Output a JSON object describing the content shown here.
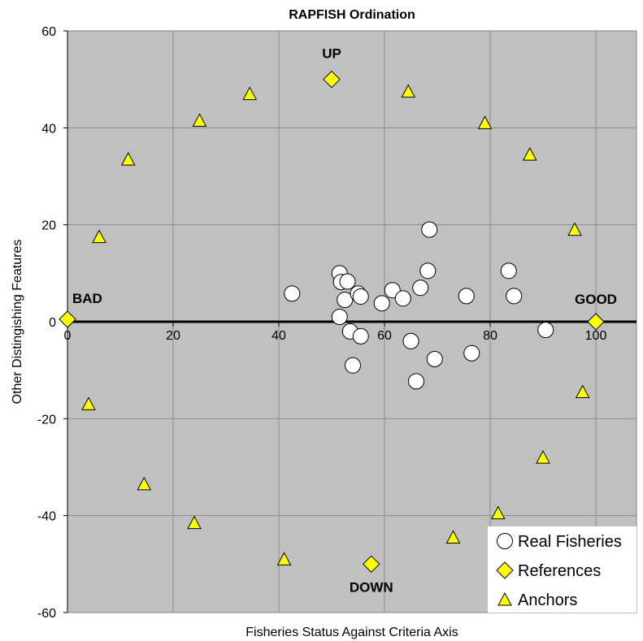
{
  "chart_data": {
    "type": "scatter",
    "title": "RAPFISH Ordination",
    "xlabel": "Fisheries Status Against Criteria Axis",
    "ylabel": "Other Distingishing Features",
    "xlim": [
      -1,
      109
    ],
    "ylim": [
      -60,
      60
    ],
    "x_ticks": [
      0,
      20,
      40,
      60,
      80,
      100
    ],
    "y_ticks": [
      -60,
      -40,
      -20,
      0,
      20,
      40,
      60
    ],
    "grid": true,
    "background": "#c0c0c0",
    "legend_position": "bottom-right",
    "series": [
      {
        "name": "Real Fisheries",
        "marker": "circle",
        "color": "#ffffff",
        "points": [
          [
            42.5,
            5.8
          ],
          [
            51.5,
            10
          ],
          [
            51.8,
            8.2
          ],
          [
            53,
            8.3
          ],
          [
            52.5,
            4.5
          ],
          [
            55,
            5.8
          ],
          [
            55.5,
            5.2
          ],
          [
            51.5,
            1
          ],
          [
            53.5,
            -2
          ],
          [
            55.5,
            -3
          ],
          [
            54,
            -9
          ],
          [
            59.5,
            3.8
          ],
          [
            61.5,
            6.5
          ],
          [
            63.5,
            4.8
          ],
          [
            65,
            -4
          ],
          [
            66,
            -12.3
          ],
          [
            66.8,
            7
          ],
          [
            68.2,
            10.5
          ],
          [
            68.5,
            19
          ],
          [
            69.5,
            -7.7
          ],
          [
            75.5,
            5.3
          ],
          [
            76.5,
            -6.5
          ],
          [
            83.5,
            10.5
          ],
          [
            84.5,
            5.3
          ],
          [
            90.5,
            -1.7
          ]
        ]
      },
      {
        "name": "References",
        "marker": "diamond",
        "color": "#ffff00",
        "points": [
          [
            0,
            0.5
          ],
          [
            50,
            50
          ],
          [
            100,
            0
          ],
          [
            57.5,
            -50
          ]
        ]
      },
      {
        "name": "Anchors",
        "marker": "triangle",
        "color": "#ffff00",
        "points": [
          [
            34.5,
            47
          ],
          [
            25,
            41.5
          ],
          [
            11.5,
            33.5
          ],
          [
            6,
            17.5
          ],
          [
            4,
            -17
          ],
          [
            14.5,
            -33.5
          ],
          [
            24,
            -41.5
          ],
          [
            41,
            -49
          ],
          [
            64.5,
            47.5
          ],
          [
            79,
            41
          ],
          [
            87.5,
            34.5
          ],
          [
            96,
            19
          ],
          [
            97.5,
            -14.5
          ],
          [
            90,
            -28
          ],
          [
            81.5,
            -39.5
          ],
          [
            73,
            -44.5
          ]
        ]
      }
    ],
    "annotations": [
      {
        "text": "BAD",
        "x": 0,
        "y": 0.5
      },
      {
        "text": "UP",
        "x": 50,
        "y": 50
      },
      {
        "text": "GOOD",
        "x": 100,
        "y": 0
      },
      {
        "text": "DOWN",
        "x": 57.5,
        "y": -50
      }
    ]
  }
}
